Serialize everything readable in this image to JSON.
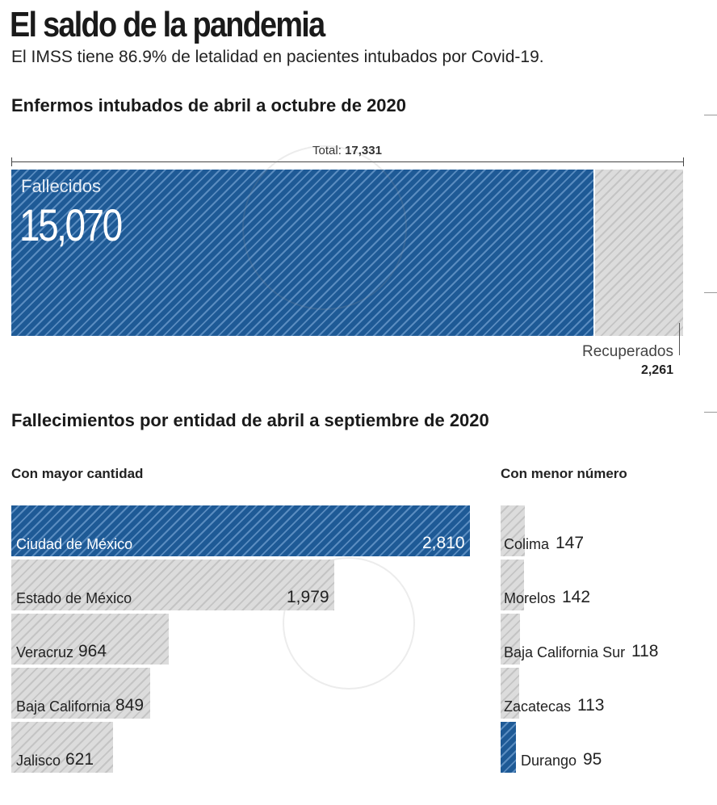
{
  "title": "El saldo de la pandemia",
  "subtitle": "El IMSS tiene 86.9% de letalidad en pacientes intubados por Covid-19.",
  "colors": {
    "blue": "#1e5a96",
    "gray": "#d6d6d6"
  },
  "chart_data": [
    {
      "type": "bar",
      "orientation": "horizontal-stacked",
      "title": "Enfermos intubados de abril a octubre de 2020",
      "total_label": "Total:",
      "total_value": "17,331",
      "total": 17331,
      "segments": [
        {
          "name": "Fallecidos",
          "value": 15070,
          "value_label": "15,070",
          "color": "#1e5a96"
        },
        {
          "name": "Recuperados",
          "value": 2261,
          "value_label": "2,261",
          "color": "#d6d6d6"
        }
      ]
    },
    {
      "type": "bar",
      "orientation": "horizontal",
      "title": "Fallecimientos por entidad de abril a septiembre de 2020",
      "groups": [
        {
          "title": "Con mayor cantidad",
          "categories": [
            "Ciudad de México",
            "Estado de México",
            "Veracruz",
            "Baja California",
            "Jalisco"
          ],
          "values": [
            2810,
            1979,
            964,
            849,
            621
          ],
          "value_labels": [
            "2,810",
            "1,979",
            "964",
            "849",
            "621"
          ],
          "highlight": "Ciudad de México"
        },
        {
          "title": "Con menor número",
          "categories": [
            "Colima",
            "Morelos",
            "Baja California Sur",
            "Zacatecas",
            "Durango"
          ],
          "values": [
            147,
            142,
            118,
            113,
            95
          ],
          "value_labels": [
            "147",
            "142",
            "118",
            "113",
            "95"
          ],
          "highlight": "Durango"
        }
      ]
    }
  ]
}
